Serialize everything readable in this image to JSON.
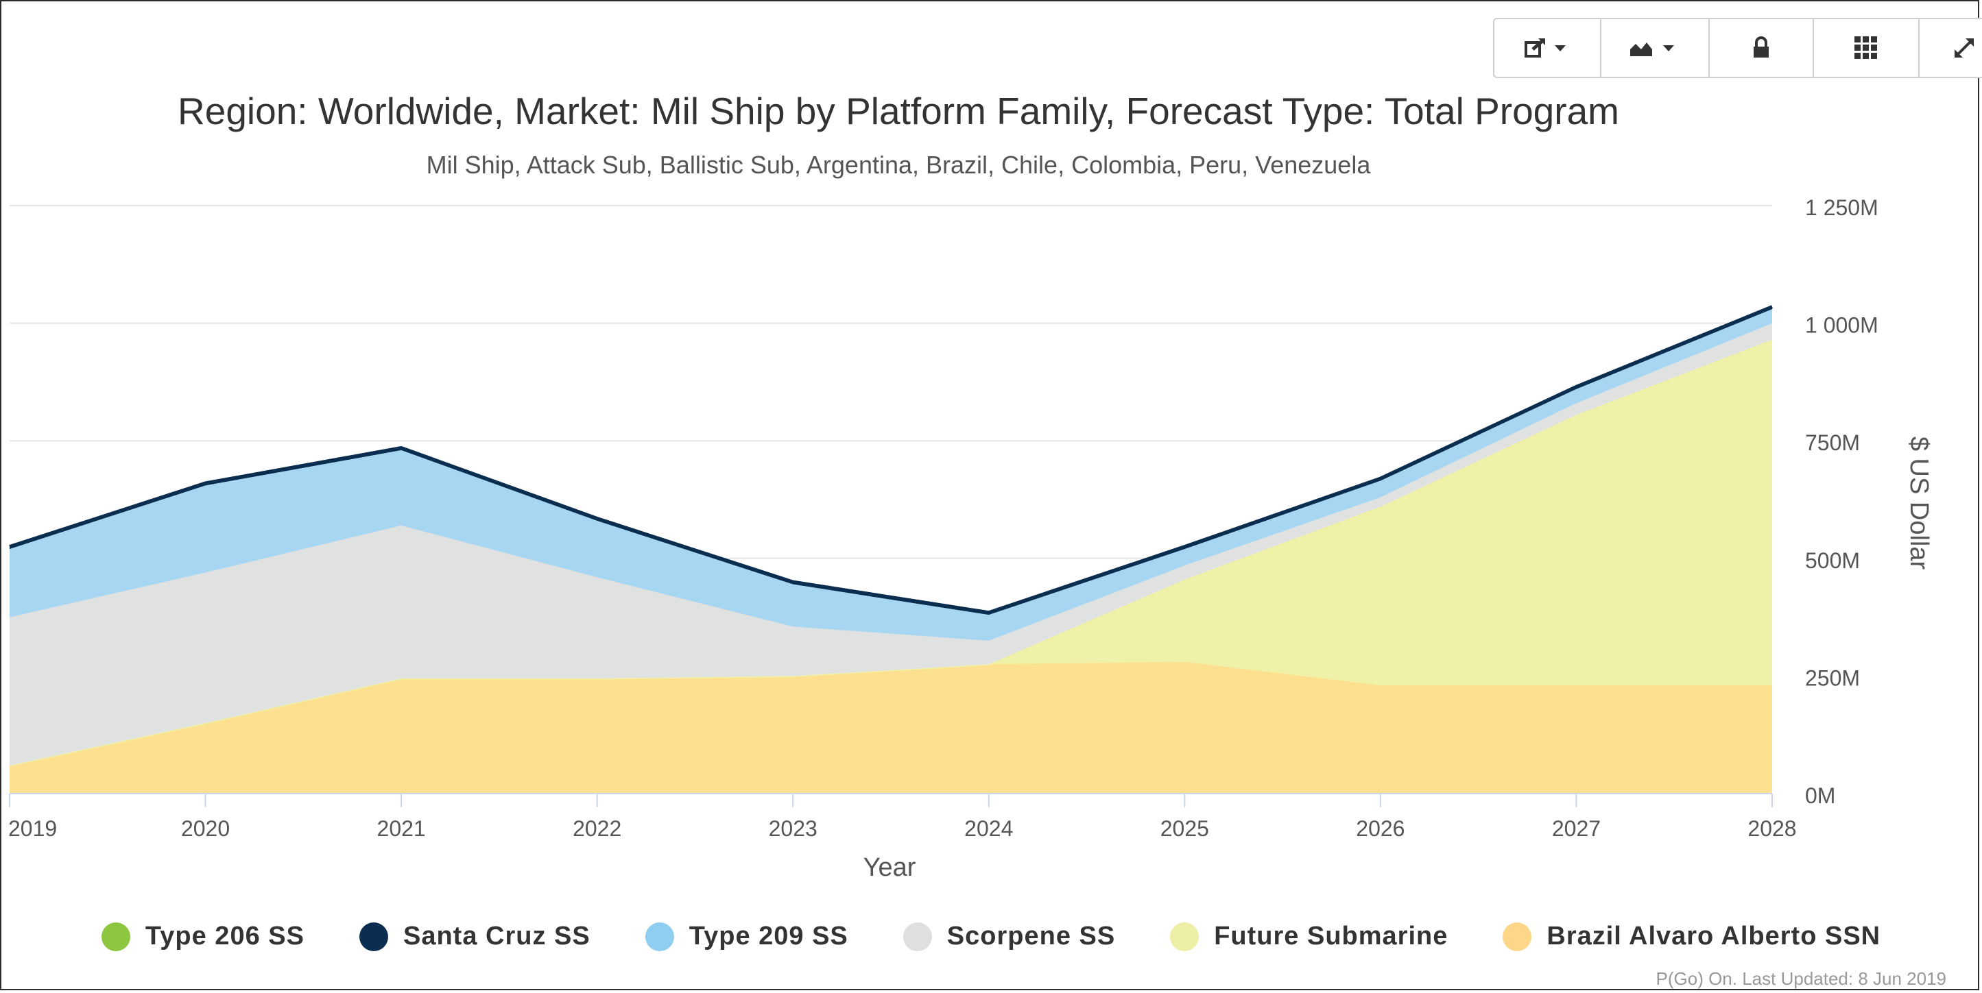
{
  "toolbar": {
    "buttons": [
      {
        "name": "export-button",
        "icon": "share-export-icon",
        "dropdown": true
      },
      {
        "name": "chart-type-button",
        "icon": "area-chart-icon",
        "dropdown": true
      },
      {
        "name": "lock-button",
        "icon": "lock-icon",
        "dropdown": false
      },
      {
        "name": "grid-button",
        "icon": "grid-icon",
        "dropdown": false
      },
      {
        "name": "expand-button",
        "icon": "expand-icon",
        "dropdown": false
      }
    ]
  },
  "chart_data": {
    "type": "area",
    "stacked": true,
    "title": "Region: Worldwide, Market: Mil Ship by Platform Family, Forecast Type: Total Program",
    "subtitle": "Mil Ship, Attack Sub, Ballistic Sub, Argentina, Brazil, Chile, Colombia, Peru, Venezuela",
    "xlabel": "Year",
    "ylabel": "$ US Dollar",
    "x": [
      "2019",
      "2020",
      "2021",
      "2022",
      "2023",
      "2024",
      "2025",
      "2026",
      "2027",
      "2028"
    ],
    "ylim": [
      0,
      1250
    ],
    "yticks": [
      0,
      250,
      500,
      750,
      1000,
      1250
    ],
    "ytick_labels": [
      "0M",
      "250M",
      "500M",
      "750M",
      "1 000M",
      "1 250M"
    ],
    "y_axis_position": "right",
    "grid": true,
    "legend_position": "bottom",
    "series": [
      {
        "name": "Brazil Alvaro Alberto SSN",
        "color": "#fde08f",
        "values": [
          60,
          150,
          245,
          245,
          250,
          275,
          280,
          230,
          230,
          230
        ]
      },
      {
        "name": "Future Submarine",
        "color": "#f0f1a9",
        "values": [
          0,
          0,
          0,
          0,
          0,
          0,
          175,
          380,
          575,
          735
        ]
      },
      {
        "name": "Scorpene SS",
        "color": "#e0e1e1",
        "values": [
          315,
          320,
          325,
          215,
          105,
          50,
          30,
          20,
          25,
          35
        ]
      },
      {
        "name": "Type 209 SS",
        "color": "#a6d6f2",
        "values": [
          145,
          185,
          160,
          120,
          90,
          55,
          35,
          35,
          30,
          30
        ]
      },
      {
        "name": "Santa Cruz SS",
        "color": "#0b2d4f",
        "values": [
          5,
          5,
          5,
          5,
          5,
          5,
          5,
          5,
          5,
          5
        ]
      },
      {
        "name": "Type 206 SS",
        "color": "#8ec63f",
        "values": [
          0,
          0,
          0,
          0,
          0,
          0,
          0,
          0,
          0,
          0
        ]
      }
    ]
  },
  "legend": {
    "items": [
      {
        "label": "Type 206 SS",
        "color": "#8ec63f"
      },
      {
        "label": "Santa Cruz SS",
        "color": "#0b2d4f"
      },
      {
        "label": "Type 209 SS",
        "color": "#8fcdf1"
      },
      {
        "label": "Scorpene SS",
        "color": "#dedfdf"
      },
      {
        "label": "Future Submarine",
        "color": "#eeefa6"
      },
      {
        "label": "Brazil Alvaro Alberto SSN",
        "color": "#fdd68a"
      }
    ]
  },
  "credits": "P(Go) On. Last Updated: 8 Jun 2019"
}
